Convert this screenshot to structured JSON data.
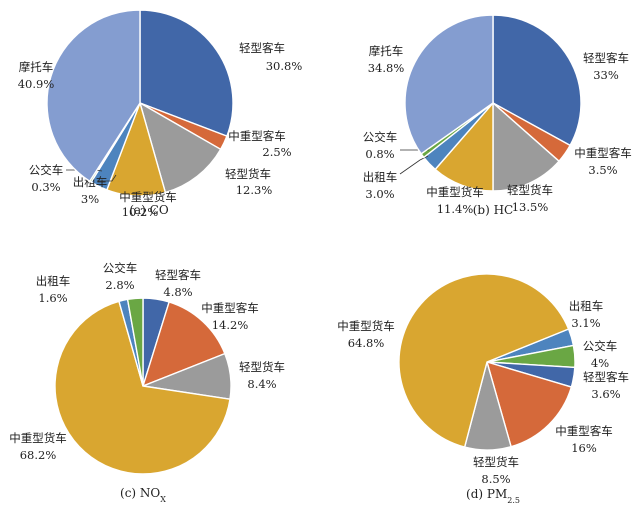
{
  "chart_data": [
    {
      "type": "pie",
      "caption": "(a) CO",
      "slices": [
        {
          "name": "轻型客车",
          "value": 30.8,
          "label": "30.8%",
          "color": "#4167A8"
        },
        {
          "name": "中重型客车",
          "value": 2.5,
          "label": "2.5%",
          "color": "#D5693A"
        },
        {
          "name": "轻型货车",
          "value": 12.3,
          "label": "12.3%",
          "color": "#9B9B9B"
        },
        {
          "name": "中重型货车",
          "value": 10.2,
          "label": "10.2%",
          "color": "#D9A630"
        },
        {
          "name": "出租车",
          "value": 3.0,
          "label": "3%",
          "color": "#4D84BE"
        },
        {
          "name": "公交车",
          "value": 0.3,
          "label": "0.3%",
          "color": "#6AA744"
        },
        {
          "name": "摩托车",
          "value": 40.9,
          "label": "40.9%",
          "color": "#849DD0"
        }
      ]
    },
    {
      "type": "pie",
      "caption": "(b) HC",
      "slices": [
        {
          "name": "轻型客车",
          "value": 33,
          "label": "33%",
          "color": "#4167A8"
        },
        {
          "name": "中重型客车",
          "value": 3.5,
          "label": "3.5%",
          "color": "#D5693A"
        },
        {
          "name": "轻型货车",
          "value": 13.5,
          "label": "13.5%",
          "color": "#9B9B9B"
        },
        {
          "name": "中重型货车",
          "value": 11.4,
          "label": "11.4%",
          "color": "#D9A630"
        },
        {
          "name": "出租车",
          "value": 3.0,
          "label": "3.0%",
          "color": "#4D84BE"
        },
        {
          "name": "公交车",
          "value": 0.8,
          "label": "0.8%",
          "color": "#6AA744"
        },
        {
          "name": "摩托车",
          "value": 34.8,
          "label": "34.8%",
          "color": "#849DD0"
        }
      ]
    },
    {
      "type": "pie",
      "caption": "(c) NO",
      "caption_sub": "X",
      "slices": [
        {
          "name": "轻型客车",
          "value": 4.8,
          "label": "4.8%",
          "color": "#4167A8"
        },
        {
          "name": "中重型客车",
          "value": 14.2,
          "label": "14.2%",
          "color": "#D5693A"
        },
        {
          "name": "轻型货车",
          "value": 8.4,
          "label": "8.4%",
          "color": "#9B9B9B"
        },
        {
          "name": "中重型货车",
          "value": 68.2,
          "label": "68.2%",
          "color": "#D9A630"
        },
        {
          "name": "出租车",
          "value": 1.6,
          "label": "1.6%",
          "color": "#4D84BE"
        },
        {
          "name": "公交车",
          "value": 2.8,
          "label": "2.8%",
          "color": "#6AA744"
        }
      ]
    },
    {
      "type": "pie",
      "caption": "(d) PM",
      "caption_sub": "2.5",
      "slices": [
        {
          "name": "出租车",
          "value": 3.1,
          "label": "3.1%",
          "color": "#4D84BE"
        },
        {
          "name": "公交车",
          "value": 4,
          "label": "4%",
          "color": "#6AA744"
        },
        {
          "name": "轻型客车",
          "value": 3.6,
          "label": "3.6%",
          "color": "#4167A8"
        },
        {
          "name": "中重型客车",
          "value": 16,
          "label": "16%",
          "color": "#D5693A"
        },
        {
          "name": "轻型货车",
          "value": 8.5,
          "label": "8.5%",
          "color": "#9B9B9B"
        },
        {
          "name": "中重型货车",
          "value": 64.8,
          "label": "64.8%",
          "color": "#D9A630"
        }
      ]
    }
  ]
}
